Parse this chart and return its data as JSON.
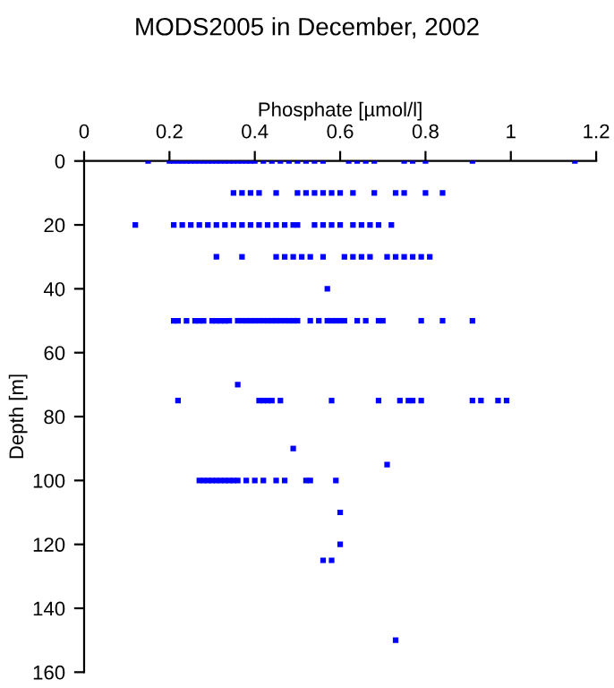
{
  "chart_data": {
    "type": "scatter",
    "title": "MODS2005 in December, 2002",
    "xlabel": "Phosphate [µmol/l]",
    "ylabel": "Depth [m]",
    "xlim": [
      0,
      1.2
    ],
    "xticks": [
      0,
      0.2,
      0.4,
      0.6,
      0.8,
      1,
      1.2
    ],
    "ylim": [
      160,
      0
    ],
    "yticks": [
      0,
      20,
      40,
      60,
      80,
      100,
      120,
      140,
      160
    ],
    "marker": "square",
    "grid": false,
    "series": [
      {
        "color": "#0000ff",
        "x": [
          0.15,
          0.2,
          0.21,
          0.22,
          0.23,
          0.24,
          0.25,
          0.26,
          0.27,
          0.28,
          0.29,
          0.3,
          0.31,
          0.32,
          0.33,
          0.34,
          0.35,
          0.36,
          0.37,
          0.38,
          0.39,
          0.4,
          0.42,
          0.44,
          0.46,
          0.48,
          0.5,
          0.52,
          0.54,
          0.56,
          0.62,
          0.64,
          0.66,
          0.68,
          0.75,
          0.77,
          0.8,
          0.91,
          1.15
        ],
        "values": [
          0,
          0,
          0,
          0,
          0,
          0,
          0,
          0,
          0,
          0,
          0,
          0,
          0,
          0,
          0,
          0,
          0,
          0,
          0,
          0,
          0,
          0,
          0,
          0,
          0,
          0,
          0,
          0,
          0,
          0,
          0,
          0,
          0,
          0,
          0,
          0,
          0,
          0,
          0
        ]
      },
      {
        "color": "#0000ff",
        "x": [
          0.35,
          0.37,
          0.39,
          0.41,
          0.45,
          0.5,
          0.52,
          0.54,
          0.56,
          0.58,
          0.6,
          0.63,
          0.68,
          0.73,
          0.75,
          0.8,
          0.84
        ],
        "values": [
          10,
          10,
          10,
          10,
          10,
          10,
          10,
          10,
          10,
          10,
          10,
          10,
          10,
          10,
          10,
          10,
          10
        ]
      },
      {
        "color": "#0000ff",
        "x": [
          0.12,
          0.21,
          0.23,
          0.25,
          0.27,
          0.29,
          0.31,
          0.33,
          0.35,
          0.37,
          0.39,
          0.41,
          0.43,
          0.45,
          0.47,
          0.49,
          0.5,
          0.54,
          0.56,
          0.58,
          0.6,
          0.63,
          0.65,
          0.67,
          0.69,
          0.72
        ],
        "values": [
          20,
          20,
          20,
          20,
          20,
          20,
          20,
          20,
          20,
          20,
          20,
          20,
          20,
          20,
          20,
          20,
          20,
          20,
          20,
          20,
          20,
          20,
          20,
          20,
          20,
          20
        ]
      },
      {
        "color": "#0000ff",
        "x": [
          0.31,
          0.37,
          0.45,
          0.47,
          0.49,
          0.51,
          0.53,
          0.56,
          0.61,
          0.63,
          0.65,
          0.67,
          0.71,
          0.73,
          0.75,
          0.77,
          0.79,
          0.81
        ],
        "values": [
          30,
          30,
          30,
          30,
          30,
          30,
          30,
          30,
          30,
          30,
          30,
          30,
          30,
          30,
          30,
          30,
          30,
          30
        ]
      },
      {
        "color": "#0000ff",
        "x": [
          0.57
        ],
        "values": [
          40
        ]
      },
      {
        "color": "#0000ff",
        "x": [
          0.21,
          0.22,
          0.24,
          0.26,
          0.27,
          0.28,
          0.3,
          0.31,
          0.32,
          0.33,
          0.34,
          0.36,
          0.37,
          0.38,
          0.39,
          0.4,
          0.41,
          0.42,
          0.43,
          0.44,
          0.45,
          0.46,
          0.47,
          0.48,
          0.49,
          0.5,
          0.53,
          0.55,
          0.57,
          0.58,
          0.59,
          0.6,
          0.61,
          0.64,
          0.66,
          0.69,
          0.7,
          0.79,
          0.84,
          0.91
        ],
        "values": [
          50,
          50,
          50,
          50,
          50,
          50,
          50,
          50,
          50,
          50,
          50,
          50,
          50,
          50,
          50,
          50,
          50,
          50,
          50,
          50,
          50,
          50,
          50,
          50,
          50,
          50,
          50,
          50,
          50,
          50,
          50,
          50,
          50,
          50,
          50,
          50,
          50,
          50,
          50,
          50
        ]
      },
      {
        "color": "#0000ff",
        "x": [
          0.36
        ],
        "values": [
          70
        ]
      },
      {
        "color": "#0000ff",
        "x": [
          0.22,
          0.41,
          0.42,
          0.43,
          0.44,
          0.46,
          0.58,
          0.69,
          0.74,
          0.76,
          0.77,
          0.79,
          0.91,
          0.93,
          0.97,
          0.99
        ],
        "values": [
          75,
          75,
          75,
          75,
          75,
          75,
          75,
          75,
          75,
          75,
          75,
          75,
          75,
          75,
          75,
          75
        ]
      },
      {
        "color": "#0000ff",
        "x": [
          0.49,
          0.71
        ],
        "values": [
          90,
          95
        ]
      },
      {
        "color": "#0000ff",
        "x": [
          0.27,
          0.28,
          0.29,
          0.3,
          0.31,
          0.32,
          0.33,
          0.34,
          0.35,
          0.36,
          0.38,
          0.4,
          0.42,
          0.45,
          0.47,
          0.52,
          0.53,
          0.59
        ],
        "values": [
          100,
          100,
          100,
          100,
          100,
          100,
          100,
          100,
          100,
          100,
          100,
          100,
          100,
          100,
          100,
          100,
          100,
          100
        ]
      },
      {
        "color": "#0000ff",
        "x": [
          0.6,
          0.6,
          0.56,
          0.58,
          0.73
        ],
        "values": [
          110,
          120,
          125,
          125,
          150
        ]
      }
    ]
  }
}
